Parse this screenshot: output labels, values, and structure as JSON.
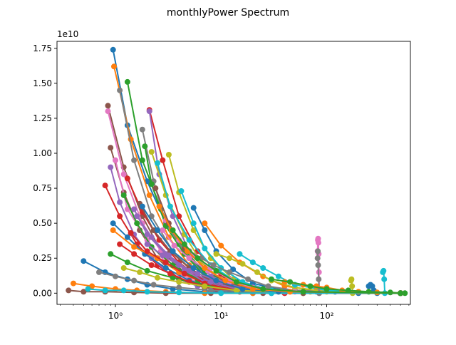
{
  "chart_data": {
    "type": "line",
    "title": "monthlyPower Spectrum",
    "xlabel": "",
    "ylabel": "",
    "x_scale": "log",
    "xlim": [
      0.28,
      620
    ],
    "ylim": [
      -800000000.0,
      18000000000.0
    ],
    "y_offset_label": "1e10",
    "x_tick_labels": [
      "10⁰",
      "10¹",
      "10²"
    ],
    "x_tick_values": [
      1,
      10,
      100
    ],
    "y_tick_labels": [
      "0.00",
      "0.25",
      "0.50",
      "0.75",
      "1.00",
      "1.25",
      "1.50",
      "1.75"
    ],
    "y_tick_values": [
      0,
      2500000000.0,
      5000000000.0,
      7500000000.0,
      10000000000.0,
      12500000000.0,
      15000000000.0,
      17500000000.0
    ],
    "grid": false,
    "legend": "none",
    "marker": "circle",
    "palette": [
      "#1f77b4",
      "#ff7f0e",
      "#2ca02c",
      "#d62728",
      "#9467bd",
      "#8c564b",
      "#e377c2",
      "#7f7f7f",
      "#bcbd22",
      "#17becf"
    ],
    "series": [
      {
        "x": [
          0.95,
          1.3,
          2,
          3,
          5,
          8,
          13,
          25,
          60,
          200,
          500
        ],
        "y": [
          17400000000.0,
          12000000000.0,
          8000000000.0,
          5000000000.0,
          2500000000.0,
          1000000000.0,
          400000000.0,
          100000000.0,
          0,
          0,
          0
        ]
      },
      {
        "x": [
          0.97,
          1.4,
          2.1,
          3.2,
          5,
          9,
          20,
          60,
          500
        ],
        "y": [
          16200000000.0,
          11000000000.0,
          7000000000.0,
          4000000000.0,
          2000000000.0,
          800000000.0,
          200000000.0,
          0,
          0
        ]
      },
      {
        "x": [
          1.3,
          1.8,
          2.7,
          4,
          7,
          15,
          40,
          500
        ],
        "y": [
          15100000000.0,
          9500000000.0,
          6000000000.0,
          3500000000.0,
          1500000000.0,
          500000000.0,
          100000000.0,
          0
        ]
      },
      {
        "x": [
          2.1,
          2.8,
          4,
          6,
          10,
          20,
          60,
          500
        ],
        "y": [
          13100000000.0,
          9500000000.0,
          5500000000.0,
          3000000000.0,
          1200000000.0,
          400000000.0,
          100000000.0,
          0
        ]
      },
      {
        "x": [
          2.1,
          2.6,
          3.5,
          5,
          8,
          15,
          40,
          500
        ],
        "y": [
          13000000000.0,
          8500000000.0,
          5500000000.0,
          3000000000.0,
          1200000000.0,
          400000000.0,
          100000000.0,
          0
        ]
      },
      {
        "x": [
          0.85,
          1.2,
          1.8,
          2.7,
          4.5,
          8,
          20,
          60,
          500
        ],
        "y": [
          13400000000.0,
          9000000000.0,
          5500000000.0,
          3000000000.0,
          1500000000.0,
          600000000.0,
          200000000.0,
          0,
          0
        ]
      },
      {
        "x": [
          0.85,
          1.2,
          1.8,
          2.7,
          4,
          7,
          15,
          40,
          500
        ],
        "y": [
          13000000000.0,
          8500000000.0,
          5000000000.0,
          3000000000.0,
          1400000000.0,
          500000000.0,
          200000000.0,
          0,
          0
        ]
      },
      {
        "x": [
          1.8,
          2.3,
          3,
          4.5,
          7,
          12,
          30,
          500
        ],
        "y": [
          11700000000.0,
          8000000000.0,
          5000000000.0,
          3000000000.0,
          1200000000.0,
          400000000.0,
          100000000.0,
          0
        ]
      },
      {
        "x": [
          3.2,
          4,
          5.5,
          8,
          13,
          25,
          70,
          500
        ],
        "y": [
          9900000000.0,
          7200000000.0,
          4500000000.0,
          2500000000.0,
          1000000000.0,
          300000000.0,
          100000000.0,
          0
        ]
      },
      {
        "x": [
          4.2,
          5.5,
          7,
          10,
          16,
          30,
          80,
          500
        ],
        "y": [
          7300000000.0,
          5000000000.0,
          3200000000.0,
          1800000000.0,
          800000000.0,
          200000000.0,
          100000000.0,
          0
        ]
      },
      {
        "x": [
          5.5,
          7,
          9,
          13,
          20,
          40,
          120,
          500
        ],
        "y": [
          6100000000.0,
          4500000000.0,
          3000000000.0,
          1700000000.0,
          700000000.0,
          200000000.0,
          100000000.0,
          0
        ]
      },
      {
        "x": [
          7,
          10,
          15,
          25,
          40,
          80,
          500
        ],
        "y": [
          5000000000.0,
          3400000000.0,
          2200000000.0,
          1200000000.0,
          500000000.0,
          200000000.0,
          0
        ]
      },
      {
        "x": [
          1.9,
          2.2,
          3,
          4.5,
          7,
          15,
          40,
          500
        ],
        "y": [
          10500000000.0,
          7800000000.0,
          4800000000.0,
          2800000000.0,
          1200000000.0,
          400000000.0,
          100000000.0,
          0
        ]
      },
      {
        "x": [
          0.8,
          1.1,
          1.6,
          2.5,
          4,
          7,
          15,
          40,
          500
        ],
        "y": [
          7700000000.0,
          5500000000.0,
          3500000000.0,
          2000000000.0,
          1000000000.0,
          400000000.0,
          100000000.0,
          0,
          0
        ]
      },
      {
        "x": [
          0.9,
          1.1,
          1.5,
          2.2,
          3.5,
          6,
          12,
          30,
          500
        ],
        "y": [
          9000000000.0,
          6500000000.0,
          4200000000.0,
          2500000000.0,
          1200000000.0,
          500000000.0,
          200000000.0,
          0,
          0
        ]
      },
      {
        "x": [
          0.9,
          1.2,
          1.7,
          2.5,
          4,
          7,
          15,
          500
        ],
        "y": [
          10400000000.0,
          7200000000.0,
          4500000000.0,
          2500000000.0,
          1000000000.0,
          400000000.0,
          100000000.0,
          0
        ]
      },
      {
        "x": [
          1.0,
          1.3,
          2,
          3,
          5,
          9,
          20,
          500
        ],
        "y": [
          9500000000.0,
          6000000000.0,
          3800000000.0,
          2200000000.0,
          1000000000.0,
          400000000.0,
          100000000.0,
          0
        ]
      },
      {
        "x": [
          1.1,
          1.5,
          2.2,
          3.5,
          6,
          12,
          30,
          500
        ],
        "y": [
          14500000000.0,
          9500000000.0,
          5500000000.0,
          3000000000.0,
          1200000000.0,
          400000000.0,
          100000000.0,
          0
        ]
      },
      {
        "x": [
          2.2,
          3,
          4.5,
          6.5,
          10,
          20,
          500
        ],
        "y": [
          10100000000.0,
          7000000000.0,
          4200000000.0,
          2200000000.0,
          1000000000.0,
          300000000.0,
          0
        ]
      },
      {
        "x": [
          2.5,
          3.3,
          5,
          8,
          14,
          30,
          500
        ],
        "y": [
          9300000000.0,
          6200000000.0,
          3800000000.0,
          2000000000.0,
          800000000.0,
          200000000.0,
          0
        ]
      },
      {
        "x": [
          0.95,
          1.3,
          1.9,
          3,
          5,
          10,
          25,
          500
        ],
        "y": [
          5000000000.0,
          4000000000.0,
          2800000000.0,
          1800000000.0,
          900000000.0,
          300000000.0,
          100000000.0,
          0
        ]
      },
      {
        "x": [
          0.95,
          1.5,
          2.5,
          4,
          7,
          15,
          40,
          500
        ],
        "y": [
          4500000000.0,
          3300000000.0,
          2500000000.0,
          1500000000.0,
          700000000.0,
          300000000.0,
          100000000.0,
          0
        ]
      },
      {
        "x": [
          1.2,
          1.6,
          2.2,
          3.5,
          6,
          12,
          30,
          500
        ],
        "y": [
          7000000000.0,
          5000000000.0,
          3300000000.0,
          2000000000.0,
          1000000000.0,
          400000000.0,
          100000000.0,
          0
        ]
      },
      {
        "x": [
          1.3,
          1.8,
          2.6,
          4,
          6.5,
          12,
          25,
          500
        ],
        "y": [
          8200000000.0,
          5800000000.0,
          3800000000.0,
          2200000000.0,
          1000000000.0,
          400000000.0,
          100000000.0,
          0
        ]
      },
      {
        "x": [
          1.5,
          2,
          3,
          4.5,
          7,
          12,
          25,
          500
        ],
        "y": [
          6000000000.0,
          4200000000.0,
          2800000000.0,
          1700000000.0,
          800000000.0,
          300000000.0,
          100000000.0,
          0
        ]
      },
      {
        "x": [
          1.7,
          2.3,
          3.3,
          5,
          8,
          15,
          35,
          500
        ],
        "y": [
          6400000000.0,
          4500000000.0,
          3000000000.0,
          1800000000.0,
          900000000.0,
          300000000.0,
          100000000.0,
          0
        ]
      },
      {
        "x": [
          3,
          4,
          5.5,
          8,
          12,
          20,
          40,
          500
        ],
        "y": [
          5200000000.0,
          3800000000.0,
          2700000000.0,
          1800000000.0,
          1000000000.0,
          400000000.0,
          100000000.0,
          0
        ]
      },
      {
        "x": [
          5,
          6.5,
          8.5,
          12,
          18,
          28,
          50,
          500
        ],
        "y": [
          3000000000.0,
          2500000000.0,
          2000000000.0,
          1500000000.0,
          1000000000.0,
          500000000.0,
          200000000.0,
          0
        ]
      },
      {
        "x": [
          9,
          12,
          16,
          22,
          30,
          50,
          100,
          500
        ],
        "y": [
          2800000000.0,
          2500000000.0,
          2100000000.0,
          1500000000.0,
          900000000.0,
          400000000.0,
          100000000.0,
          0
        ]
      },
      {
        "x": [
          15,
          20,
          25,
          35,
          50,
          100,
          500
        ],
        "y": [
          2800000000.0,
          2200000000.0,
          1800000000.0,
          1200000000.0,
          600000000.0,
          200000000.0,
          0
        ]
      },
      {
        "x": [
          0.5,
          0.8,
          1.3,
          2,
          3.5,
          7,
          20,
          500
        ],
        "y": [
          2300000000.0,
          1500000000.0,
          1000000000.0,
          600000000.0,
          300000000.0,
          100000000.0,
          0,
          0
        ]
      },
      {
        "x": [
          0.4,
          0.6,
          1,
          1.6,
          3,
          7,
          20,
          500
        ],
        "y": [
          700000000.0,
          500000000.0,
          300000000.0,
          200000000.0,
          100000000.0,
          0,
          0,
          0
        ]
      },
      {
        "x": [
          0.9,
          1.3,
          2,
          3.5,
          6,
          12,
          25,
          500
        ],
        "y": [
          2800000000.0,
          2200000000.0,
          1600000000.0,
          1100000000.0,
          700000000.0,
          300000000.0,
          100000000.0,
          0
        ]
      },
      {
        "x": [
          1.1,
          1.5,
          2.2,
          3.3,
          5,
          9,
          20,
          500
        ],
        "y": [
          3500000000.0,
          2800000000.0,
          2000000000.0,
          1400000000.0,
          800000000.0,
          300000000.0,
          100000000.0,
          0
        ]
      },
      {
        "x": [
          2,
          2.8,
          4,
          6,
          10,
          18,
          40,
          500
        ],
        "y": [
          3500000000.0,
          2700000000.0,
          2000000000.0,
          1400000000.0,
          800000000.0,
          300000000.0,
          100000000.0,
          0
        ]
      },
      {
        "x": [
          0.36,
          0.5,
          0.8,
          1.5,
          3,
          8,
          25,
          500
        ],
        "y": [
          200000000.0,
          100000000.0,
          100000000.0,
          50000000.0,
          0,
          0,
          0,
          0
        ]
      },
      {
        "x": [
          82,
          82.5,
          83,
          83.5,
          84,
          84.5,
          85
        ],
        "y": [
          3000000000.0,
          3800000000.0,
          3900000000.0,
          3600000000.0,
          2800000000.0,
          1500000000.0,
          0
        ]
      },
      {
        "x": [
          82,
          82.5,
          83,
          84,
          85
        ],
        "y": [
          2500000000.0,
          3000000000.0,
          2000000000.0,
          1000000000.0,
          0
        ]
      },
      {
        "x": [
          170,
          172,
          174,
          176
        ],
        "y": [
          900000000.0,
          1000000000.0,
          500000000.0,
          0
        ]
      },
      {
        "x": [
          340,
          345,
          350,
          355
        ],
        "y": [
          1500000000.0,
          1600000000.0,
          1000000000.0,
          0
        ]
      },
      {
        "x": [
          250,
          260,
          270,
          280,
          300
        ],
        "y": [
          500000000.0,
          600000000.0,
          500000000.0,
          200000000.0,
          0
        ]
      },
      {
        "x": [
          40,
          60,
          80,
          100,
          140,
          200,
          300,
          500
        ],
        "y": [
          800000000.0,
          600000000.0,
          500000000.0,
          400000000.0,
          200000000.0,
          100000000.0,
          50000000.0,
          0
        ]
      },
      {
        "x": [
          30,
          45,
          70,
          100,
          160,
          250,
          400,
          550
        ],
        "y": [
          1000000000.0,
          800000000.0,
          500000000.0,
          300000000.0,
          200000000.0,
          100000000.0,
          50000000.0,
          0
        ]
      },
      {
        "x": [
          1.4,
          2,
          3,
          4.5,
          7,
          12,
          25,
          500
        ],
        "y": [
          4300000000.0,
          3000000000.0,
          2200000000.0,
          1400000000.0,
          700000000.0,
          300000000.0,
          100000000.0,
          0
        ]
      },
      {
        "x": [
          1.6,
          2.2,
          3.2,
          5,
          8,
          14,
          30,
          500
        ],
        "y": [
          5500000000.0,
          4000000000.0,
          2700000000.0,
          1600000000.0,
          800000000.0,
          300000000.0,
          100000000.0,
          0
        ]
      },
      {
        "x": [
          2.4,
          3.2,
          4.5,
          7,
          11,
          20,
          45,
          500
        ],
        "y": [
          7500000000.0,
          5000000000.0,
          3200000000.0,
          1800000000.0,
          800000000.0,
          300000000.0,
          100000000.0,
          0
        ]
      },
      {
        "x": [
          2.8,
          3.6,
          5,
          7.5,
          12,
          22,
          50,
          500
        ],
        "y": [
          4500000000.0,
          3400000000.0,
          2500000000.0,
          1600000000.0,
          800000000.0,
          300000000.0,
          100000000.0,
          0
        ]
      },
      {
        "x": [
          0.7,
          1,
          1.5,
          2.3,
          4,
          8,
          20,
          500
        ],
        "y": [
          1500000000.0,
          1200000000.0,
          900000000.0,
          600000000.0,
          400000000.0,
          200000000.0,
          100000000.0,
          0
        ]
      },
      {
        "x": [
          1.2,
          1.7,
          2.5,
          4,
          7,
          14,
          35,
          500
        ],
        "y": [
          1800000000.0,
          1500000000.0,
          1100000000.0,
          800000000.0,
          500000000.0,
          200000000.0,
          100000000.0,
          0
        ]
      },
      {
        "x": [
          0.55,
          0.8,
          1.2,
          2,
          4,
          10,
          30,
          500
        ],
        "y": [
          300000000.0,
          200000000.0,
          200000000.0,
          100000000.0,
          50000000.0,
          0,
          0,
          0
        ]
      },
      {
        "x": [
          1.8,
          2.5,
          3.5,
          5.5,
          9,
          16,
          35,
          500
        ],
        "y": [
          6200000000.0,
          4500000000.0,
          3000000000.0,
          1800000000.0,
          900000000.0,
          300000000.0,
          100000000.0,
          0
        ]
      },
      {
        "x": [
          2.6,
          3.4,
          4.8,
          7,
          11,
          20,
          45,
          500
        ],
        "y": [
          6200000000.0,
          4500000000.0,
          3000000000.0,
          1800000000.0,
          900000000.0,
          300000000.0,
          100000000.0,
          0
        ]
      },
      {
        "x": [
          3.5,
          4.5,
          6,
          9,
          14,
          25,
          60,
          500
        ],
        "y": [
          4500000000.0,
          3500000000.0,
          2500000000.0,
          1600000000.0,
          800000000.0,
          300000000.0,
          100000000.0,
          0
        ]
      }
    ]
  }
}
